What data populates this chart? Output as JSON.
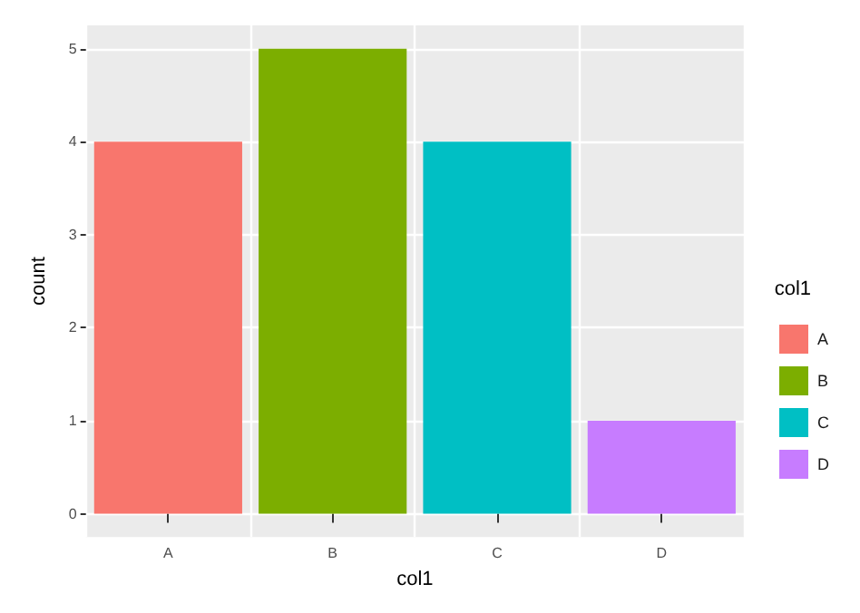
{
  "chart_data": {
    "type": "bar",
    "xlabel": "col1",
    "ylabel": "count",
    "legend_title": "col1",
    "categories": [
      "A",
      "B",
      "C",
      "D"
    ],
    "series": [
      {
        "name": "A",
        "color": "#f8766d",
        "values": [
          4,
          null,
          null,
          null
        ]
      },
      {
        "name": "B",
        "color": "#7cae00",
        "values": [
          null,
          5,
          null,
          null
        ]
      },
      {
        "name": "C",
        "color": "#00bfc4",
        "values": [
          null,
          null,
          4,
          null
        ]
      },
      {
        "name": "D",
        "color": "#c77cff",
        "values": [
          null,
          null,
          null,
          1
        ]
      }
    ],
    "stacked": true,
    "ylim": [
      -0.25,
      5.25
    ],
    "yticks": [
      0,
      1,
      2,
      3,
      4,
      5
    ],
    "grid": true,
    "legend": "right"
  }
}
